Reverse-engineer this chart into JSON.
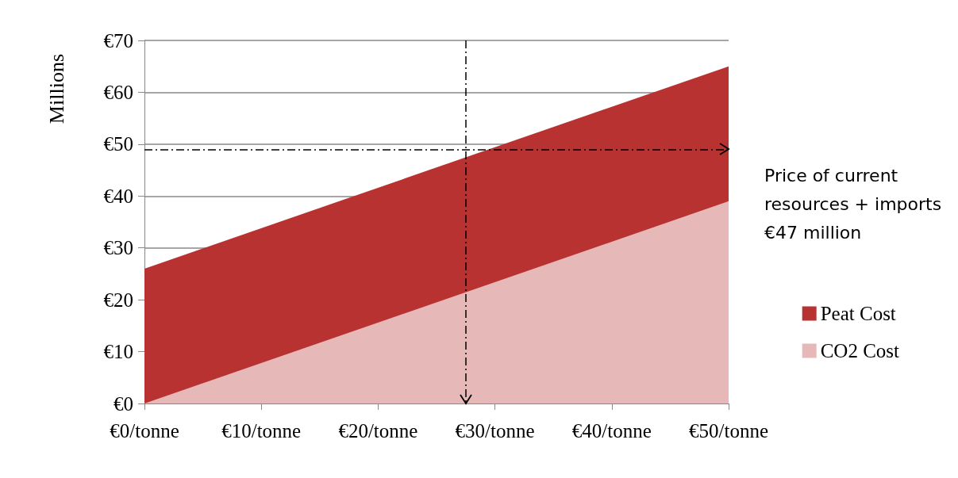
{
  "chart_data": {
    "type": "area",
    "stacked": true,
    "ylabel": "Millions",
    "x": [
      0,
      50
    ],
    "xlim": [
      0,
      50
    ],
    "xticks": [
      {
        "value": 0,
        "label": "€0/tonne"
      },
      {
        "value": 10,
        "label": "€10/tonne"
      },
      {
        "value": 20,
        "label": "€20/tonne"
      },
      {
        "value": 30,
        "label": "€30/tonne"
      },
      {
        "value": 40,
        "label": "€40/tonne"
      },
      {
        "value": 50,
        "label": "€50/tonne"
      }
    ],
    "ylim": [
      0,
      70
    ],
    "yticks": [
      {
        "value": 0,
        "label": "€0"
      },
      {
        "value": 10,
        "label": "€10"
      },
      {
        "value": 20,
        "label": "€20"
      },
      {
        "value": 30,
        "label": "€30"
      },
      {
        "value": 40,
        "label": "€40"
      },
      {
        "value": 50,
        "label": "€50"
      },
      {
        "value": 60,
        "label": "€60"
      },
      {
        "value": 70,
        "label": "€70"
      }
    ],
    "series": [
      {
        "name": "CO2 Cost",
        "color": "#e6b8b7",
        "values": [
          0,
          39
        ]
      },
      {
        "name": "Peat Cost",
        "color": "#b83232",
        "values": [
          26,
          26
        ]
      }
    ],
    "ref_lines": [
      {
        "axis": "y",
        "value": 49,
        "line_style": "dashed",
        "color": "#000000"
      },
      {
        "axis": "x",
        "value": 27.5,
        "line_style": "dashed",
        "color": "#000000"
      }
    ],
    "annotations": [
      "Price of current resources + imports €47 million"
    ],
    "grid": "y",
    "legend": "right"
  }
}
